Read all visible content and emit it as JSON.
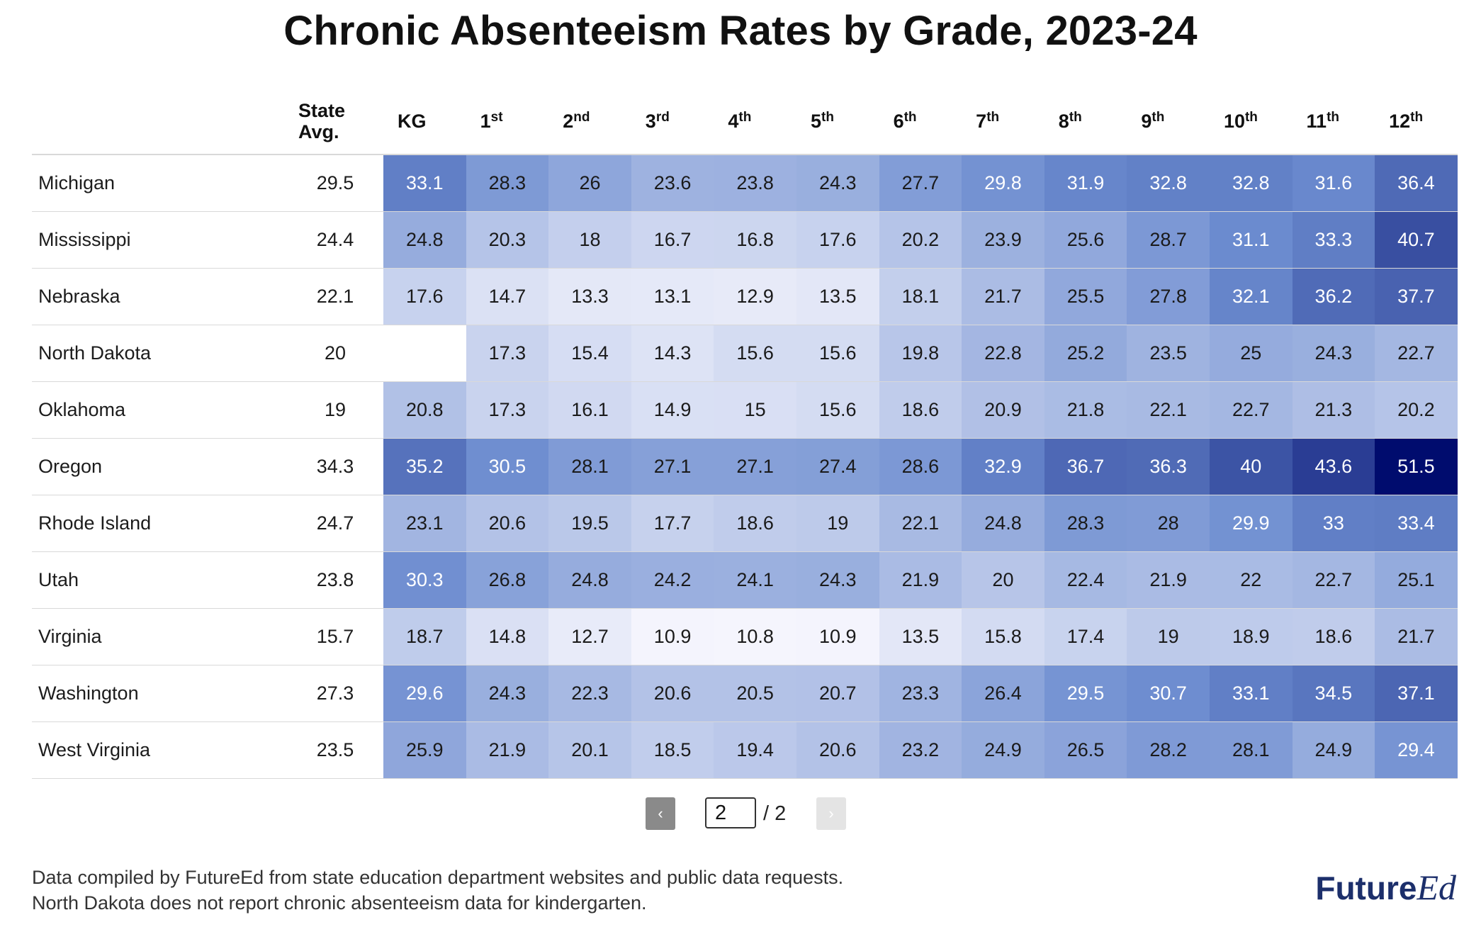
{
  "title": "Chronic Absenteeism Rates by Grade, 2023-24",
  "table": {
    "state_avg_header": [
      "State",
      "Avg."
    ],
    "grade_headers": [
      {
        "base": "KG",
        "sup": ""
      },
      {
        "base": "1",
        "sup": "st"
      },
      {
        "base": "2",
        "sup": "nd"
      },
      {
        "base": "3",
        "sup": "rd"
      },
      {
        "base": "4",
        "sup": "th"
      },
      {
        "base": "5",
        "sup": "th"
      },
      {
        "base": "6",
        "sup": "th"
      },
      {
        "base": "7",
        "sup": "th"
      },
      {
        "base": "8",
        "sup": "th"
      },
      {
        "base": "9",
        "sup": "th"
      },
      {
        "base": "10",
        "sup": "th"
      },
      {
        "base": "11",
        "sup": "th"
      },
      {
        "base": "12",
        "sup": "th"
      }
    ]
  },
  "chart_data": {
    "type": "heatmap",
    "title": "Chronic Absenteeism Rates by Grade, 2023-24",
    "columns": [
      "KG",
      "1st",
      "2nd",
      "3rd",
      "4th",
      "5th",
      "6th",
      "7th",
      "8th",
      "9th",
      "10th",
      "11th",
      "12th"
    ],
    "color_scale": {
      "low": "#f5f5fd",
      "mid": "#6b8bcf",
      "high": "#000c6e",
      "domain": [
        10.8,
        51.5
      ]
    },
    "rows": [
      {
        "state": "Michigan",
        "avg": 29.5,
        "values": [
          33.1,
          28.3,
          26,
          23.6,
          23.8,
          24.3,
          27.7,
          29.8,
          31.9,
          32.8,
          32.8,
          31.6,
          36.4
        ]
      },
      {
        "state": "Mississippi",
        "avg": 24.4,
        "values": [
          24.8,
          20.3,
          18,
          16.7,
          16.8,
          17.6,
          20.2,
          23.9,
          25.6,
          28.7,
          31.1,
          33.3,
          40.7
        ]
      },
      {
        "state": "Nebraska",
        "avg": 22.1,
        "values": [
          17.6,
          14.7,
          13.3,
          13.1,
          12.9,
          13.5,
          18.1,
          21.7,
          25.5,
          27.8,
          32.1,
          36.2,
          37.7
        ]
      },
      {
        "state": "North Dakota",
        "avg": 20,
        "values": [
          null,
          17.3,
          15.4,
          14.3,
          15.6,
          15.6,
          19.8,
          22.8,
          25.2,
          23.5,
          25,
          24.3,
          22.7
        ]
      },
      {
        "state": "Oklahoma",
        "avg": 19,
        "values": [
          20.8,
          17.3,
          16.1,
          14.9,
          15,
          15.6,
          18.6,
          20.9,
          21.8,
          22.1,
          22.7,
          21.3,
          20.2
        ]
      },
      {
        "state": "Oregon",
        "avg": 34.3,
        "values": [
          35.2,
          30.5,
          28.1,
          27.1,
          27.1,
          27.4,
          28.6,
          32.9,
          36.7,
          36.3,
          40,
          43.6,
          51.5
        ]
      },
      {
        "state": "Rhode Island",
        "avg": 24.7,
        "values": [
          23.1,
          20.6,
          19.5,
          17.7,
          18.6,
          19,
          22.1,
          24.8,
          28.3,
          28,
          29.9,
          33,
          33.4
        ]
      },
      {
        "state": "Utah",
        "avg": 23.8,
        "values": [
          30.3,
          26.8,
          24.8,
          24.2,
          24.1,
          24.3,
          21.9,
          20,
          22.4,
          21.9,
          22,
          22.7,
          25.1
        ]
      },
      {
        "state": "Virginia",
        "avg": 15.7,
        "values": [
          18.7,
          14.8,
          12.7,
          10.9,
          10.8,
          10.9,
          13.5,
          15.8,
          17.4,
          19,
          18.9,
          18.6,
          21.7
        ]
      },
      {
        "state": "Washington",
        "avg": 27.3,
        "values": [
          29.6,
          24.3,
          22.3,
          20.6,
          20.5,
          20.7,
          23.3,
          26.4,
          29.5,
          30.7,
          33.1,
          34.5,
          37.1
        ]
      },
      {
        "state": "West Virginia",
        "avg": 23.5,
        "values": [
          25.9,
          21.9,
          20.1,
          18.5,
          19.4,
          20.6,
          23.2,
          24.9,
          26.5,
          28.2,
          28.1,
          24.9,
          29.4
        ]
      }
    ]
  },
  "pagination": {
    "prev_icon": "‹",
    "next_icon": "›",
    "current_page": "2",
    "total_label": "/ 2"
  },
  "footnotes": [
    "Data compiled by FutureEd from state education department websites and public data requests.",
    "North Dakota does not report chronic absenteeism data for kindergarten."
  ],
  "logo": {
    "part1": "Future",
    "part2": "Ed",
    "color": "#1c2f6b"
  }
}
